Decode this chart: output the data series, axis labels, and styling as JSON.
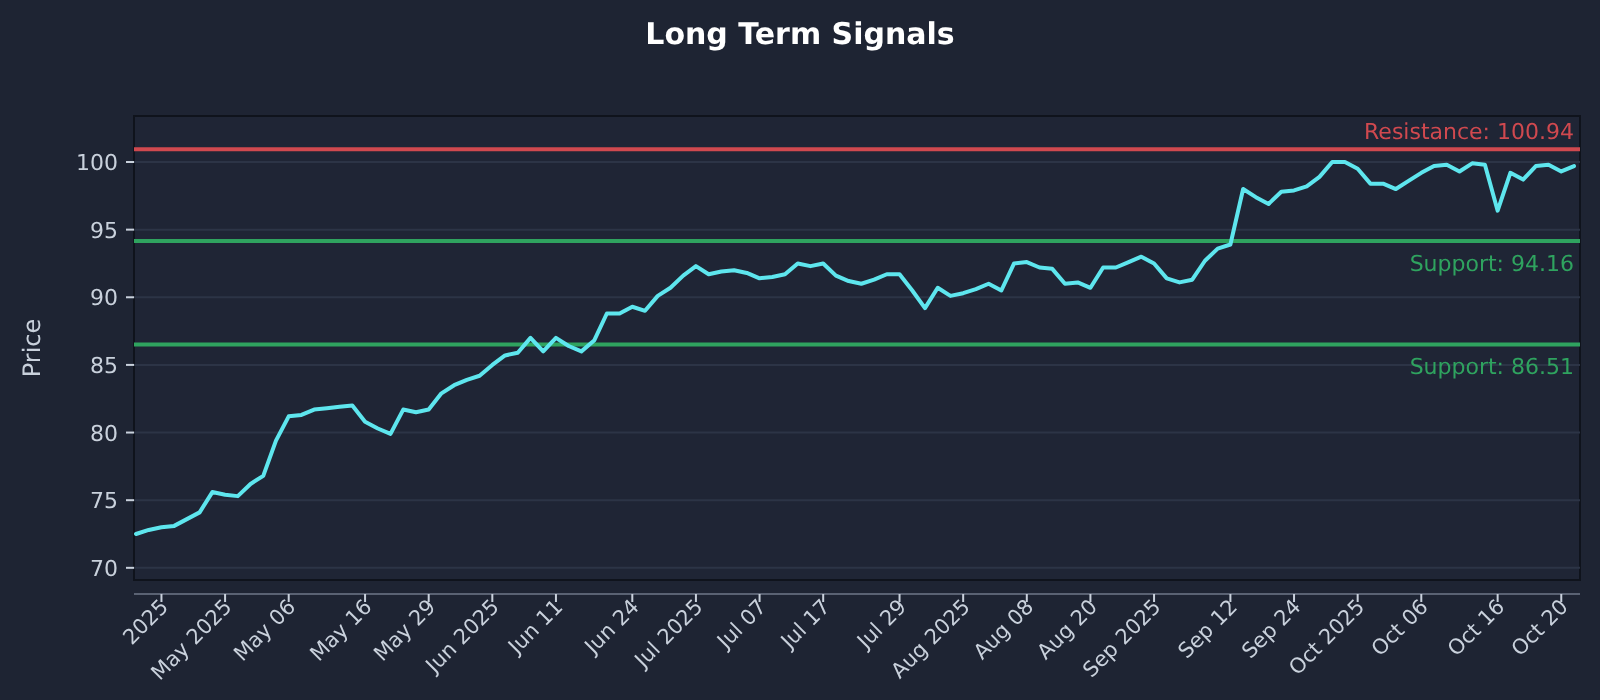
{
  "chart_data": {
    "type": "line",
    "title": "Long Term Signals",
    "ylabel": "Price",
    "categories": [
      null,
      null,
      "2025",
      null,
      null,
      null,
      null,
      "May 2025",
      null,
      null,
      null,
      null,
      "May 06",
      null,
      null,
      null,
      null,
      null,
      "May 16",
      null,
      null,
      null,
      null,
      "May 29",
      null,
      null,
      null,
      null,
      "Jun 2025",
      null,
      null,
      null,
      null,
      "Jun 11",
      null,
      null,
      null,
      null,
      null,
      "Jun 24",
      null,
      null,
      null,
      null,
      "Jul 2025",
      null,
      null,
      null,
      null,
      "Jul 07",
      null,
      null,
      null,
      null,
      "Jul 17",
      null,
      null,
      null,
      null,
      null,
      "Jul 29",
      null,
      null,
      null,
      null,
      "Aug 2025",
      null,
      null,
      null,
      null,
      "Aug 08",
      null,
      null,
      null,
      null,
      "Aug 20",
      null,
      null,
      null,
      null,
      "Sep 2025",
      null,
      null,
      null,
      null,
      null,
      "Sep 12",
      null,
      null,
      null,
      null,
      "Sep 24",
      null,
      null,
      null,
      null,
      "Oct 2025",
      null,
      null,
      null,
      null,
      "Oct 06",
      null,
      null,
      null,
      null,
      null,
      "Oct 16",
      null,
      null,
      null,
      null,
      "Oct 20",
      null
    ],
    "series": [
      {
        "color": "#5ee6ee",
        "values": [
          72.5,
          72.8,
          73.0,
          73.1,
          73.6,
          74.1,
          75.6,
          75.4,
          75.3,
          76.2,
          76.8,
          79.4,
          81.2,
          81.3,
          81.7,
          81.8,
          81.9,
          82.0,
          80.8,
          80.3,
          79.9,
          81.7,
          81.5,
          81.7,
          82.9,
          83.5,
          83.9,
          84.2,
          85.0,
          85.7,
          85.9,
          87.0,
          86.0,
          87.0,
          86.4,
          86.0,
          86.8,
          88.8,
          88.8,
          89.3,
          89.0,
          90.1,
          90.7,
          91.6,
          92.3,
          91.7,
          91.9,
          92.0,
          91.8,
          91.4,
          91.5,
          91.7,
          92.5,
          92.3,
          92.5,
          91.6,
          91.2,
          91.0,
          91.3,
          91.7,
          91.7,
          90.5,
          89.2,
          90.7,
          90.1,
          90.3,
          90.6,
          91.0,
          90.5,
          92.5,
          92.6,
          92.2,
          92.1,
          91.0,
          91.1,
          90.7,
          92.2,
          92.2,
          92.6,
          93.0,
          92.5,
          91.4,
          91.1,
          91.3,
          92.7,
          93.6,
          93.9,
          98.0,
          97.4,
          96.9,
          97.8,
          97.9,
          98.2,
          98.9,
          100.0,
          100.0,
          99.5,
          98.4,
          98.4,
          98.0,
          98.6,
          99.2,
          99.7,
          99.8,
          99.3,
          99.9,
          99.8,
          96.4,
          99.2,
          98.7,
          99.7,
          99.8,
          99.3,
          99.7
        ]
      }
    ],
    "ylim": [
      69.1,
      103.4
    ],
    "yticks": [
      70,
      75,
      80,
      85,
      90,
      95,
      100
    ],
    "grid": "y",
    "marker": "none",
    "line_style": "solid",
    "ref_lines": [
      {
        "axis": "y",
        "value": 100.94,
        "label": "Resistance: 100.94",
        "color": "#d0494f"
      },
      {
        "axis": "y",
        "value": 94.16,
        "label": "Support: 94.16",
        "color": "#2fa35f"
      },
      {
        "axis": "y",
        "value": 86.51,
        "label": "Support: 86.51",
        "color": "#2fa35f"
      }
    ]
  }
}
